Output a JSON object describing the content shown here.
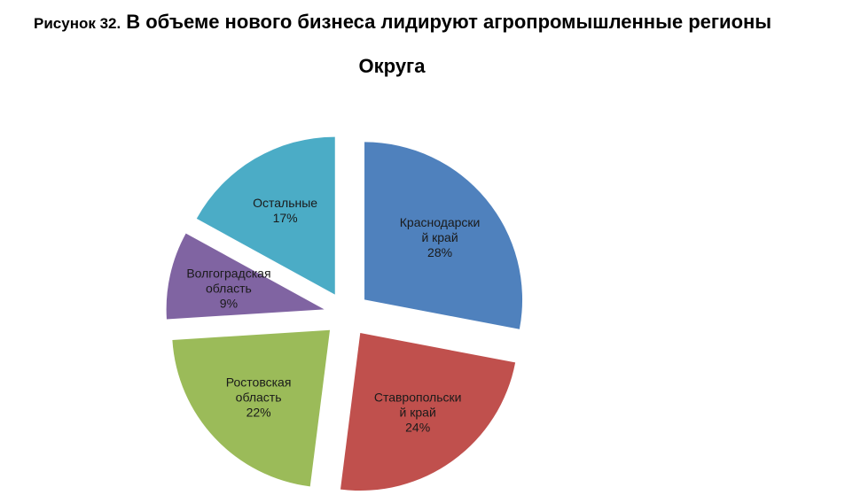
{
  "figure": {
    "prefix": "Рисунок 32.",
    "caption": "В объеме нового бизнеса лидируют агропромышленные регионы"
  },
  "chart_data": {
    "type": "pie",
    "title": "Округа",
    "exploded": true,
    "start_angle_deg": 0,
    "direction": "clockwise",
    "slices": [
      {
        "label_lines": [
          "Краснодарски",
          "й край"
        ],
        "value_label": "28%",
        "value": 28,
        "color": "#4F81BD"
      },
      {
        "label_lines": [
          "Ставропольски",
          "й край"
        ],
        "value_label": "24%",
        "value": 24,
        "color": "#C0504D"
      },
      {
        "label_lines": [
          "Ростовская",
          "область"
        ],
        "value_label": "22%",
        "value": 22,
        "color": "#9BBB59"
      },
      {
        "label_lines": [
          "Волгоградская",
          "область"
        ],
        "value_label": "9%",
        "value": 9,
        "color": "#8064A2"
      },
      {
        "label_lines": [
          "Остальные"
        ],
        "value_label": "17%",
        "value": 17,
        "color": "#4BACC6"
      }
    ]
  }
}
